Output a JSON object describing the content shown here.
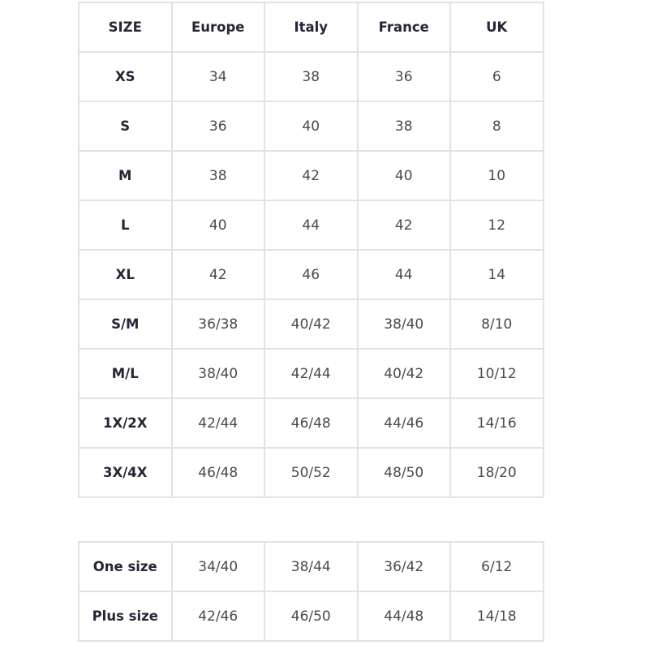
{
  "size_table": {
    "headers": [
      "SIZE",
      "Europe",
      "Italy",
      "France",
      "UK"
    ],
    "rows": [
      [
        "XS",
        "34",
        "38",
        "36",
        "6"
      ],
      [
        "S",
        "36",
        "40",
        "38",
        "8"
      ],
      [
        "M",
        "38",
        "42",
        "40",
        "10"
      ],
      [
        "L",
        "40",
        "44",
        "42",
        "12"
      ],
      [
        "XL",
        "42",
        "46",
        "44",
        "14"
      ],
      [
        "S/M",
        "36/38",
        "40/42",
        "38/40",
        "8/10"
      ],
      [
        "M/L",
        "38/40",
        "42/44",
        "40/42",
        "10/12"
      ],
      [
        "1X/2X",
        "42/44",
        "46/48",
        "44/46",
        "14/16"
      ],
      [
        "3X/4X",
        "46/48",
        "50/52",
        "48/50",
        "18/20"
      ]
    ]
  },
  "range_table": {
    "rows": [
      [
        "One size",
        "34/40",
        "38/44",
        "36/42",
        "6/12"
      ],
      [
        "Plus size",
        "42/46",
        "46/50",
        "44/48",
        "14/18"
      ]
    ]
  }
}
